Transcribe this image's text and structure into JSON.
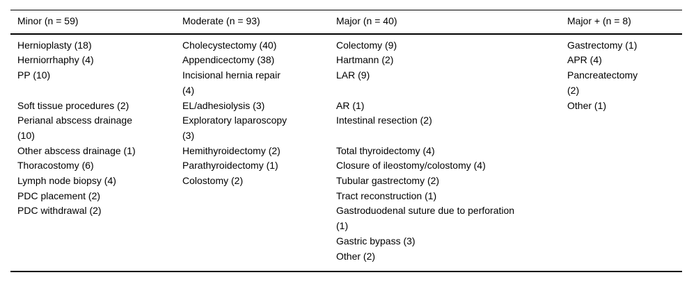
{
  "table": {
    "columns": [
      {
        "header": "Minor (n = 59)"
      },
      {
        "header": "Moderate (n = 93)"
      },
      {
        "header": "Major (n = 40)"
      },
      {
        "header": "Major + (n = 8)"
      }
    ],
    "rows": [
      [
        "Hernioplasty (18)",
        "Cholecystectomy (40)",
        "Colectomy (9)",
        "Gastrectomy (1)"
      ],
      [
        "Herniorrhaphy (4)",
        "Appendicectomy (38)",
        "Hartmann (2)",
        "APR (4)"
      ],
      [
        "PP (10)",
        "Incisional hernia repair\n(4)",
        "LAR (9)",
        "Pancreatectomy\n(2)"
      ],
      [
        "Soft tissue procedures (2)",
        "EL/adhesiolysis (3)",
        "AR (1)",
        "Other (1)"
      ],
      [
        "Perianal abscess drainage\n(10)",
        "Exploratory laparoscopy\n(3)",
        "Intestinal resection (2)",
        ""
      ],
      [
        "Other abscess drainage (1)",
        "Hemithyroidectomy (2)",
        "Total thyroidectomy (4)",
        ""
      ],
      [
        "Thoracostomy (6)",
        "Parathyroidectomy (1)",
        "Closure of ileostomy/colostomy (4)",
        ""
      ],
      [
        "Lymph node biopsy (4)",
        "Colostomy (2)",
        "Tubular gastrectomy (2)",
        ""
      ],
      [
        "PDC placement (2)",
        "",
        "Tract reconstruction (1)",
        ""
      ],
      [
        "PDC withdrawal (2)",
        "",
        "Gastroduodenal suture due to perforation\n(1)",
        ""
      ],
      [
        "",
        "",
        "Gastric bypass (3)",
        ""
      ],
      [
        "",
        "",
        "Other (2)",
        ""
      ]
    ]
  }
}
